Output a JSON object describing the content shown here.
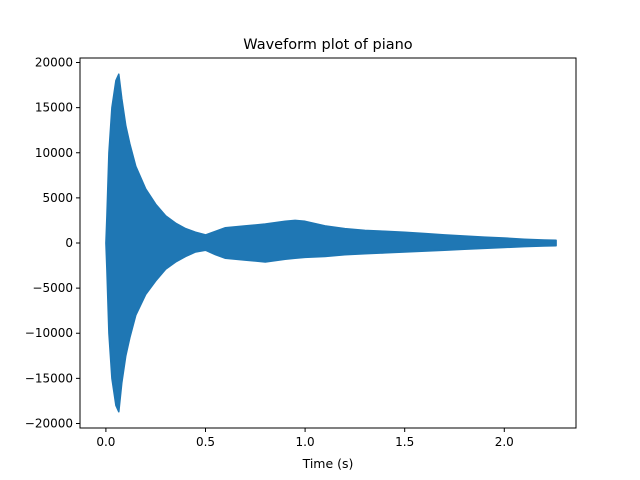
{
  "chart_data": {
    "type": "area",
    "title": "Waveform plot of piano",
    "xlabel": "Time (s)",
    "ylabel": "",
    "xlim": [
      -0.13,
      2.36
    ],
    "ylim": [
      -20500,
      20500
    ],
    "xticks": [
      0.0,
      0.5,
      1.0,
      1.5,
      2.0
    ],
    "xtick_labels": [
      "0.0",
      "0.5",
      "1.0",
      "1.5",
      "2.0"
    ],
    "yticks": [
      20000,
      15000,
      10000,
      5000,
      0,
      -5000,
      -10000,
      -15000,
      -20000
    ],
    "ytick_labels": [
      "20000",
      "15000",
      "10000",
      "5000",
      "0",
      "−5000",
      "−10000",
      "−15000",
      "−20000"
    ],
    "grid": false,
    "series": [
      {
        "color": "#1f77b4",
        "x": [
          0.0,
          0.005,
          0.015,
          0.03,
          0.05,
          0.065,
          0.08,
          0.1,
          0.12,
          0.15,
          0.2,
          0.25,
          0.3,
          0.35,
          0.4,
          0.45,
          0.5,
          0.55,
          0.6,
          0.7,
          0.8,
          0.9,
          0.95,
          1.0,
          1.1,
          1.2,
          1.3,
          1.4,
          1.5,
          1.6,
          1.7,
          1.8,
          1.9,
          2.0,
          2.1,
          2.2,
          2.26
        ],
        "upper": [
          0,
          3000,
          10000,
          15000,
          18000,
          18700,
          16000,
          13000,
          11000,
          8500,
          6000,
          4300,
          3000,
          2200,
          1600,
          1200,
          900,
          1300,
          1700,
          1900,
          2100,
          2400,
          2500,
          2400,
          1900,
          1600,
          1400,
          1300,
          1200,
          1050,
          900,
          780,
          650,
          550,
          420,
          330,
          300
        ],
        "lower": [
          0,
          -3000,
          -10000,
          -15000,
          -18000,
          -18700,
          -15500,
          -12500,
          -10500,
          -8000,
          -5700,
          -4200,
          -2900,
          -2100,
          -1500,
          -1000,
          -800,
          -1300,
          -1700,
          -1900,
          -2100,
          -1800,
          -1700,
          -1600,
          -1500,
          -1300,
          -1200,
          -1100,
          -1000,
          -900,
          -800,
          -700,
          -600,
          -500,
          -400,
          -330,
          -300
        ]
      }
    ]
  }
}
